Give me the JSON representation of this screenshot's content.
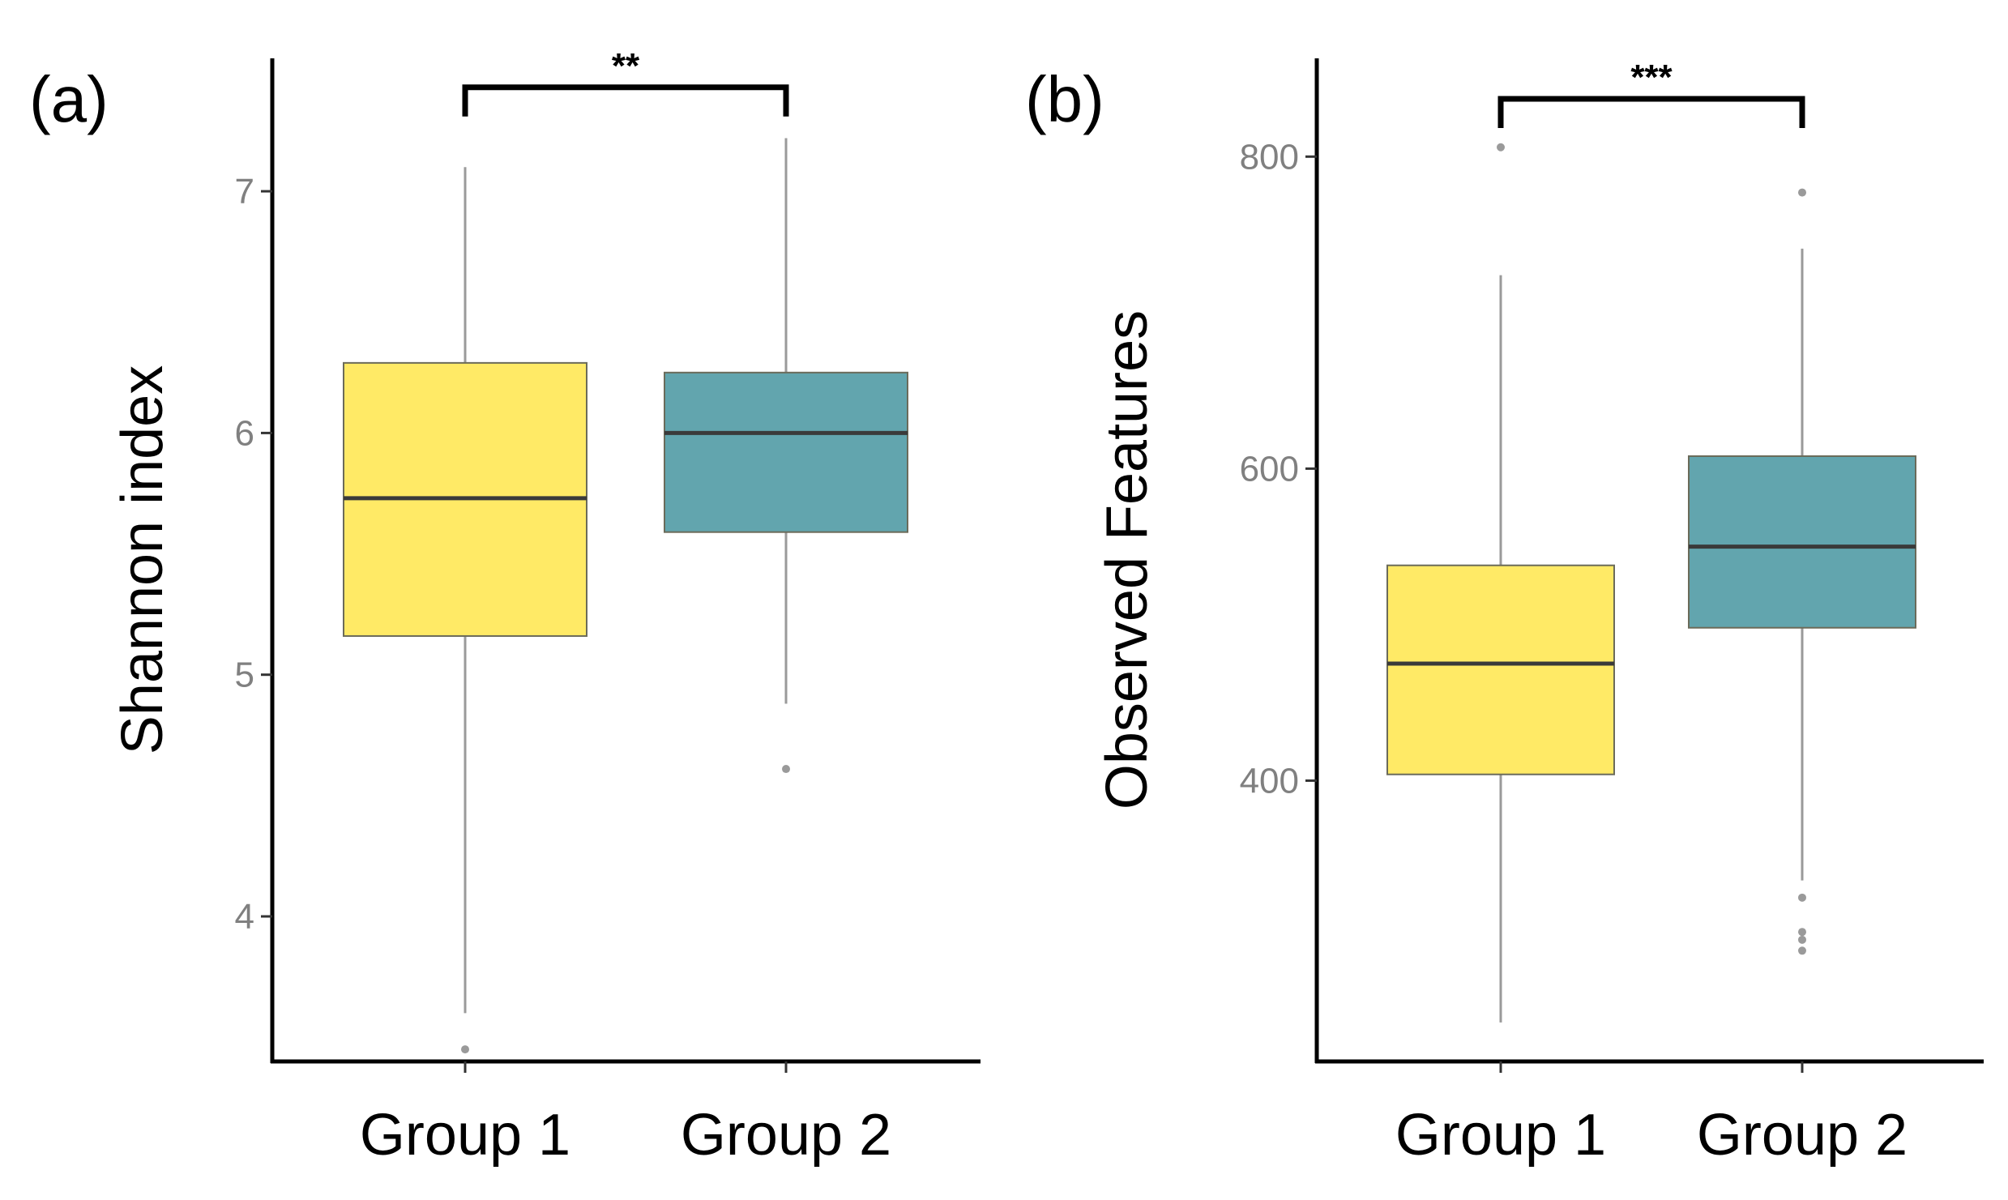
{
  "chart_data": [
    {
      "type": "boxplot",
      "panel_label": "(a)",
      "title": "",
      "xlabel": "",
      "ylabel": "Shannon index",
      "ylim": [
        3.4,
        7.55
      ],
      "yticks": [
        4,
        5,
        6,
        7
      ],
      "grid": false,
      "legend": "none",
      "categories": [
        "Group 1",
        "Group 2"
      ],
      "colors": [
        "#FFEA66",
        "#62A5AE"
      ],
      "series": [
        {
          "name": "Group 1",
          "whisker_low": 3.6,
          "q1": 5.16,
          "median": 5.73,
          "q3": 6.29,
          "whisker_high": 7.1,
          "outliers": [
            3.45
          ]
        },
        {
          "name": "Group 2",
          "whisker_low": 4.88,
          "q1": 5.59,
          "median": 6.0,
          "q3": 6.25,
          "whisker_high": 7.22,
          "outliers": [
            4.61
          ]
        }
      ],
      "significance": {
        "label": "**",
        "y": 7.43,
        "from": "Group 1",
        "to": "Group 2"
      }
    },
    {
      "type": "boxplot",
      "panel_label": "(b)",
      "title": "",
      "xlabel": "",
      "ylabel": "Observed Features",
      "ylim": [
        220,
        863
      ],
      "yticks": [
        400,
        600,
        800
      ],
      "grid": false,
      "legend": "none",
      "categories": [
        "Group 1",
        "Group 2"
      ],
      "colors": [
        "#FFEA66",
        "#62A5AE"
      ],
      "series": [
        {
          "name": "Group 1",
          "whisker_low": 245,
          "q1": 404,
          "median": 475,
          "q3": 538,
          "whisker_high": 724,
          "outliers": [
            806
          ]
        },
        {
          "name": "Group 2",
          "whisker_low": 336,
          "q1": 498,
          "median": 550,
          "q3": 608,
          "whisker_high": 741,
          "outliers": [
            777,
            325,
            303,
            298,
            291
          ]
        }
      ],
      "significance": {
        "label": "***",
        "y": 837,
        "from": "Group 1",
        "to": "Group 2"
      }
    }
  ]
}
